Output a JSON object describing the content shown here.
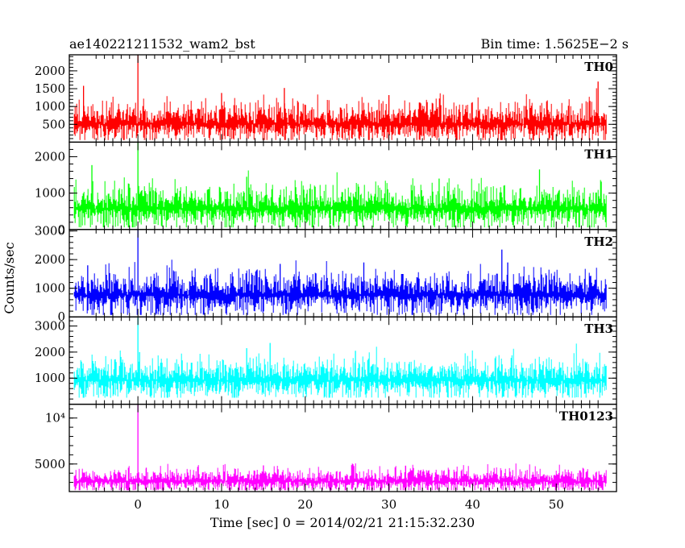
{
  "chart_data": {
    "type": "line",
    "title_left": "ae140221211532_wam2_bst",
    "title_right": "Bin time: 1.5625E−2 s",
    "xlabel": "Time [sec] 0 = 2014/02/21 21:15:32.230",
    "ylabel": "Counts/sec",
    "xlim": [
      -8.2,
      57.2
    ],
    "data_range": [
      -7.6,
      56.0
    ],
    "x_ticks": [
      0,
      10,
      20,
      30,
      40,
      50
    ],
    "x_tick_labels": [
      "0",
      "10",
      "20",
      "30",
      "40",
      "50"
    ],
    "panels": [
      {
        "label": "TH0",
        "color": "#ff0000",
        "ylim": [
          0,
          2450
        ],
        "y_ticks": [
          500,
          1000,
          1500,
          2000
        ],
        "y_tick_labels": [
          "500",
          "1000",
          "1500",
          "2000"
        ],
        "baseline": 500,
        "noise": 300,
        "floor": 60,
        "spikes": [
          [
            0.0,
            2450
          ],
          [
            -6.5,
            1580
          ],
          [
            17.5,
            1520
          ],
          [
            55.0,
            1700
          ],
          [
            10.0,
            1380
          ],
          [
            30.0,
            1320
          ]
        ]
      },
      {
        "label": "TH1",
        "color": "#00ff00",
        "ylim": [
          0,
          2400
        ],
        "y_ticks": [
          0,
          1000,
          2000
        ],
        "y_tick_labels": [
          "0",
          "1000",
          "2000"
        ],
        "baseline": 560,
        "noise": 320,
        "floor": 60,
        "spikes": [
          [
            0.0,
            2400
          ],
          [
            -5.5,
            1770
          ],
          [
            48.0,
            1650
          ],
          [
            13.0,
            1450
          ],
          [
            36.0,
            1400
          ]
        ]
      },
      {
        "label": "TH2",
        "color": "#0000ff",
        "ylim": [
          0,
          3050
        ],
        "y_ticks": [
          0,
          1000,
          2000,
          3000
        ],
        "y_tick_labels": [
          "0",
          "1000",
          "2000",
          "3000"
        ],
        "baseline": 750,
        "noise": 400,
        "floor": 70,
        "spikes": [
          [
            0.0,
            3050
          ],
          [
            43.5,
            2350
          ],
          [
            44.2,
            1900
          ],
          [
            27.0,
            1900
          ],
          [
            17.0,
            1850
          ],
          [
            -6.0,
            1800
          ]
        ]
      },
      {
        "label": "TH3",
        "color": "#00ffff",
        "ylim": [
          0,
          3350
        ],
        "y_ticks": [
          1000,
          2000,
          3000
        ],
        "y_tick_labels": [
          "1000",
          "2000",
          "3000"
        ],
        "baseline": 900,
        "noise": 430,
        "floor": 250,
        "spikes": [
          [
            0.0,
            3350
          ],
          [
            15.8,
            2350
          ],
          [
            13.0,
            2150
          ],
          [
            26.0,
            2050
          ],
          [
            0.2,
            2000
          ]
        ]
      },
      {
        "label": "TH0123",
        "color": "#ff00ff",
        "ylim": [
          2000,
          11500
        ],
        "y_ticks": [
          5000,
          10000
        ],
        "y_tick_labels": [
          "5000",
          "10⁴"
        ],
        "baseline": 3100,
        "noise": 700,
        "floor": 2150,
        "spikes": [
          [
            0.0,
            11500
          ],
          [
            15.0,
            4850
          ],
          [
            32.0,
            4800
          ],
          [
            1.0,
            4600
          ]
        ]
      }
    ]
  }
}
